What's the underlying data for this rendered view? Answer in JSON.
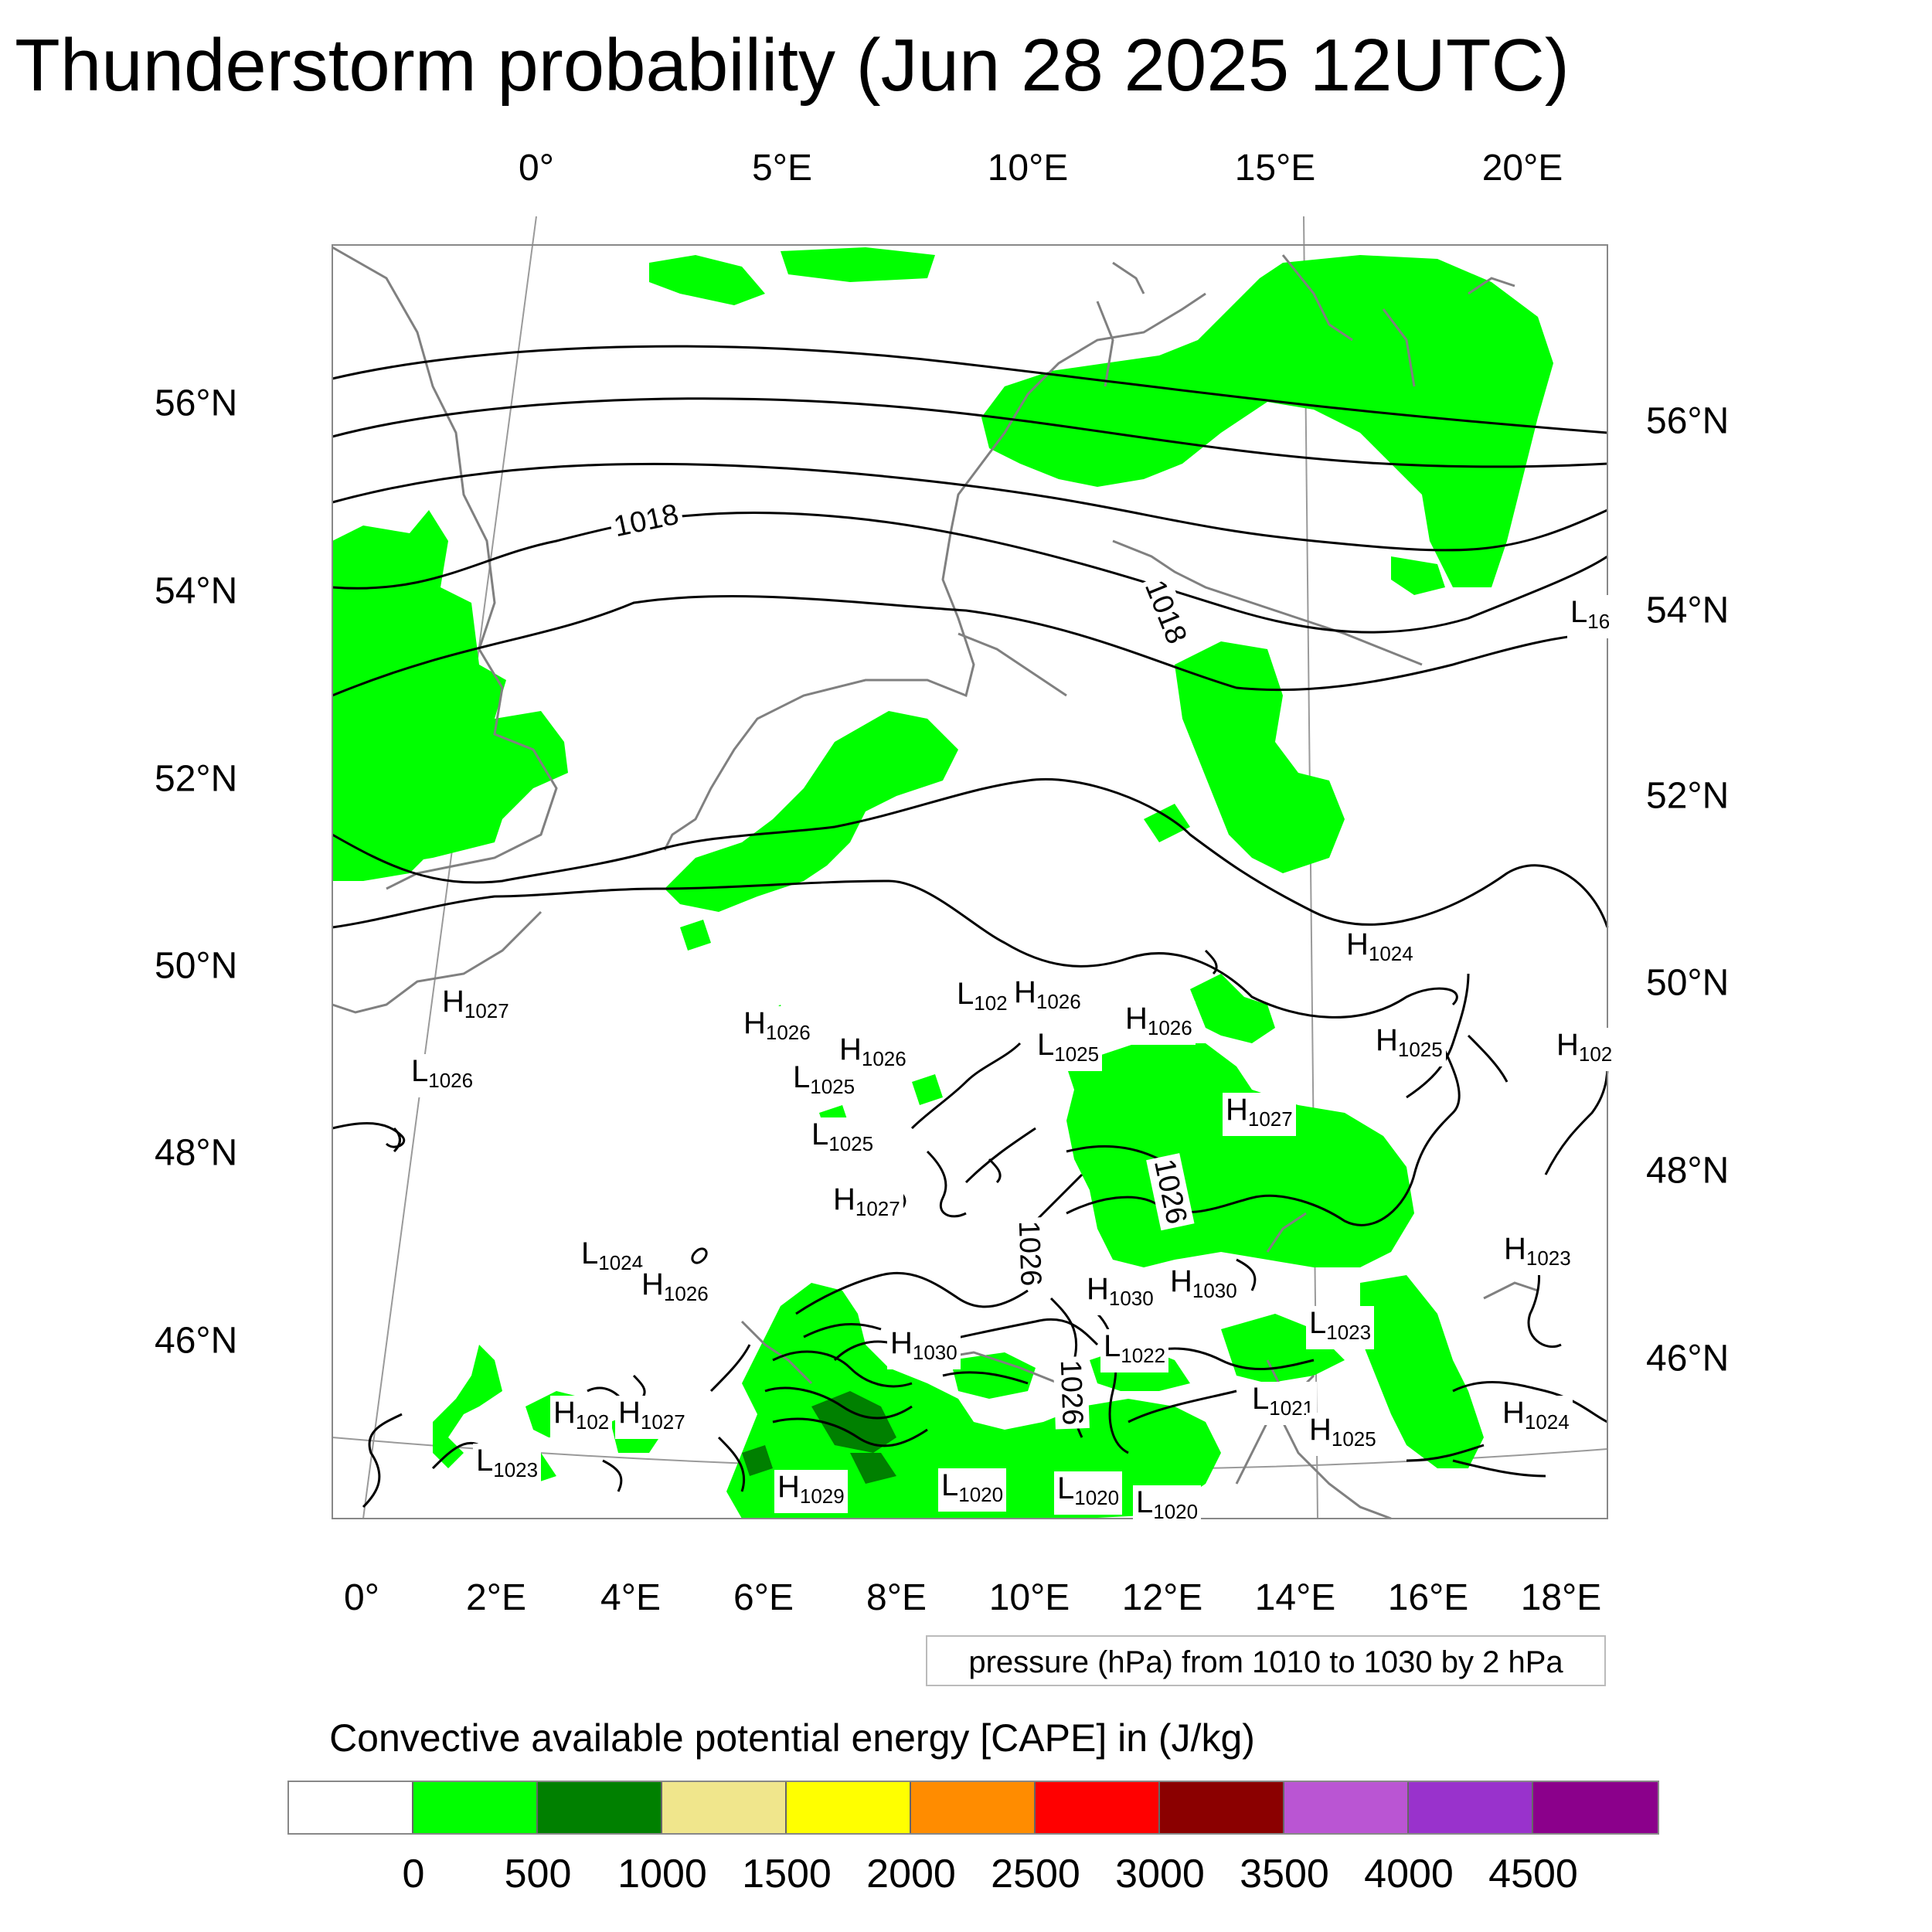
{
  "title": "Thunderstorm probability (Jun 28 2025 12UTC)",
  "top_lon_ticks": [
    "0°",
    "5°E",
    "10°E",
    "15°E",
    "20°E"
  ],
  "bottom_lon_ticks": [
    "0°",
    "2°E",
    "4°E",
    "6°E",
    "8°E",
    "10°E",
    "12°E",
    "14°E",
    "16°E",
    "18°E"
  ],
  "left_lat_ticks": [
    "56°N",
    "54°N",
    "52°N",
    "50°N",
    "48°N",
    "46°N"
  ],
  "right_lat_ticks": [
    "56°N",
    "54°N",
    "52°N",
    "50°N",
    "48°N",
    "46°N"
  ],
  "pressure_note": "pressure (hPa) from 1010 to 1030 by 2 hPa",
  "isobar_labels": [
    "1018",
    "1018",
    "1026",
    "1026",
    "1026"
  ],
  "pressure_centers": [
    {
      "letter": "H",
      "value": "1027"
    },
    {
      "letter": "L",
      "value": "1026"
    },
    {
      "letter": "H",
      "value": "1026"
    },
    {
      "letter": "H",
      "value": "1026"
    },
    {
      "letter": "L",
      "value": "1025"
    },
    {
      "letter": "L",
      "value": "1025"
    },
    {
      "letter": "H",
      "value": "1027"
    },
    {
      "letter": "L",
      "value": "102"
    },
    {
      "letter": "H",
      "value": "1026"
    },
    {
      "letter": "L",
      "value": "1025"
    },
    {
      "letter": "H",
      "value": "1026"
    },
    {
      "letter": "H",
      "value": "1027"
    },
    {
      "letter": "H",
      "value": "1024"
    },
    {
      "letter": "H",
      "value": "1025"
    },
    {
      "letter": "H",
      "value": "102"
    },
    {
      "letter": "L",
      "value": "16"
    },
    {
      "letter": "L",
      "value": "1024"
    },
    {
      "letter": "H",
      "value": "1026"
    },
    {
      "letter": "H",
      "value": "1030"
    },
    {
      "letter": "H",
      "value": "1030"
    },
    {
      "letter": "H",
      "value": "1030"
    },
    {
      "letter": "L",
      "value": "1022"
    },
    {
      "letter": "L",
      "value": "1023"
    },
    {
      "letter": "H",
      "value": "1023"
    },
    {
      "letter": "H",
      "value": "102"
    },
    {
      "letter": "H",
      "value": "1027"
    },
    {
      "letter": "L",
      "value": "1021"
    },
    {
      "letter": "H",
      "value": "1025"
    },
    {
      "letter": "H",
      "value": "1024"
    },
    {
      "letter": "L",
      "value": "1023"
    },
    {
      "letter": "H",
      "value": "1029"
    },
    {
      "letter": "L",
      "value": "1020"
    },
    {
      "letter": "L",
      "value": "1020"
    },
    {
      "letter": "L",
      "value": "1020"
    }
  ],
  "legend": {
    "title": "Convective available potential energy [CAPE] in (J/kg)",
    "colors": [
      "#ffffff",
      "#00ff00",
      "#008000",
      "#f0e68c",
      "#ffff00",
      "#ff8c00",
      "#ff0000",
      "#8b0000",
      "#ba55d3",
      "#9932cc",
      "#8b008b"
    ],
    "labels": [
      "0",
      "500",
      "1000",
      "1500",
      "2000",
      "2500",
      "3000",
      "3500",
      "4000",
      "4500"
    ]
  },
  "colors": {
    "cape_green": "#00ff00",
    "coastline": "#808080",
    "isobar": "#000000"
  }
}
